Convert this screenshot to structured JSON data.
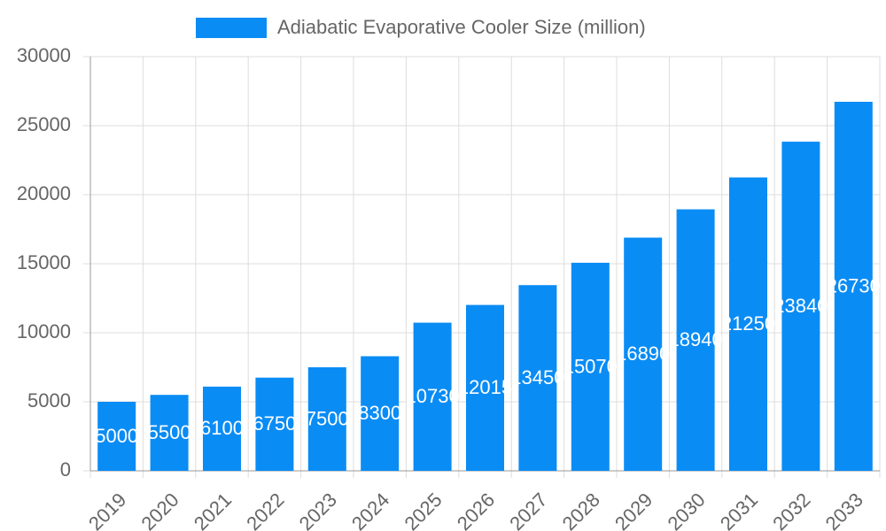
{
  "chart_data": {
    "type": "bar",
    "categories": [
      "2019",
      "2020",
      "2021",
      "2022",
      "2023",
      "2024",
      "2025",
      "2026",
      "2027",
      "2028",
      "2029",
      "2030",
      "2031",
      "2032",
      "2033"
    ],
    "series": [
      {
        "name": "Adiabatic Evaporative Cooler Size (million)",
        "color": "#0a8cf5",
        "values": [
          5000,
          5500,
          6100,
          6750,
          7500,
          8300,
          10730,
          12015,
          13450,
          15070,
          16890,
          18940,
          21250,
          23840,
          26730
        ]
      }
    ],
    "ylim": [
      0,
      30000
    ],
    "yticks": [
      0,
      5000,
      10000,
      15000,
      20000,
      25000,
      30000
    ],
    "grid": true,
    "legend": "top"
  }
}
